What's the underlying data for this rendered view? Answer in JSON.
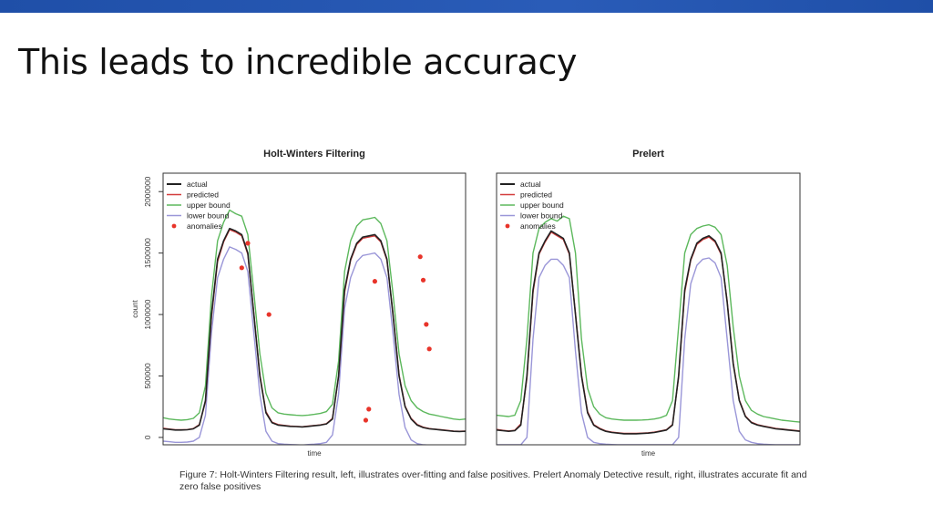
{
  "slide": {
    "title": "This leads to incredible accuracy",
    "caption": "Figure 7: Holt-Winters Filtering result, left, illustrates over-fitting and false positives.  Prelert Anomaly Detective result, right, illustrates accurate fit and zero false positives",
    "theme_color": "#2a5cb8"
  },
  "chart_data": [
    {
      "type": "line",
      "title": "Holt-Winters Filtering",
      "xlabel": "time",
      "ylabel": "count",
      "ylim": [
        -60000,
        2150000
      ],
      "yticks": [
        0,
        500000,
        1000000,
        1500000,
        2000000
      ],
      "ytick_labels": [
        "0",
        "500000",
        "1000000",
        "1500000",
        "2000000"
      ],
      "grid": false,
      "legend_position": "top-left",
      "legend": [
        "actual",
        "predicted",
        "upper bound",
        "lower bound",
        "anomalies"
      ],
      "colors": {
        "actual": "#222222",
        "predicted": "#d33c3c",
        "upper": "#5cb85c",
        "lower": "#9a96d8",
        "anomalies": "#e8342a"
      },
      "x": [
        0,
        0.02,
        0.04,
        0.06,
        0.08,
        0.1,
        0.12,
        0.14,
        0.16,
        0.18,
        0.2,
        0.22,
        0.24,
        0.26,
        0.28,
        0.3,
        0.32,
        0.34,
        0.36,
        0.38,
        0.4,
        0.42,
        0.44,
        0.46,
        0.48,
        0.5,
        0.52,
        0.54,
        0.56,
        0.58,
        0.6,
        0.62,
        0.64,
        0.66,
        0.68,
        0.7,
        0.72,
        0.74,
        0.76,
        0.78,
        0.8,
        0.82,
        0.84,
        0.86,
        0.88,
        0.9,
        0.92,
        0.94,
        0.96,
        0.98,
        1.0
      ],
      "series": [
        {
          "name": "actual",
          "values": [
            70000,
            65000,
            60000,
            60000,
            62000,
            70000,
            100000,
            300000,
            1000000,
            1450000,
            1600000,
            1700000,
            1680000,
            1650000,
            1500000,
            1000000,
            500000,
            200000,
            120000,
            100000,
            95000,
            90000,
            88000,
            85000,
            90000,
            95000,
            100000,
            110000,
            150000,
            500000,
            1200000,
            1450000,
            1580000,
            1630000,
            1640000,
            1650000,
            1600000,
            1450000,
            1000000,
            500000,
            250000,
            150000,
            100000,
            80000,
            70000,
            65000,
            60000,
            55000,
            50000,
            48000,
            50000
          ]
        },
        {
          "name": "predicted",
          "values": [
            75000,
            68000,
            63000,
            62000,
            64000,
            72000,
            105000,
            290000,
            980000,
            1430000,
            1590000,
            1690000,
            1670000,
            1640000,
            1490000,
            1010000,
            510000,
            210000,
            125000,
            105000,
            98000,
            92000,
            90000,
            87000,
            92000,
            97000,
            102000,
            112000,
            155000,
            490000,
            1180000,
            1440000,
            1570000,
            1620000,
            1630000,
            1640000,
            1590000,
            1440000,
            1010000,
            510000,
            255000,
            155000,
            105000,
            83000,
            72000,
            67000,
            62000,
            57000,
            52000,
            50000,
            52000
          ]
        },
        {
          "name": "upper bound",
          "values": [
            160000,
            150000,
            145000,
            140000,
            145000,
            155000,
            200000,
            420000,
            1150000,
            1600000,
            1750000,
            1850000,
            1820000,
            1800000,
            1650000,
            1180000,
            680000,
            360000,
            240000,
            200000,
            190000,
            185000,
            180000,
            178000,
            182000,
            188000,
            195000,
            210000,
            270000,
            620000,
            1350000,
            1600000,
            1720000,
            1770000,
            1780000,
            1790000,
            1740000,
            1600000,
            1170000,
            680000,
            420000,
            300000,
            240000,
            210000,
            190000,
            180000,
            170000,
            160000,
            150000,
            145000,
            150000
          ]
        },
        {
          "name": "lower bound",
          "values": [
            -30000,
            -35000,
            -40000,
            -40000,
            -38000,
            -30000,
            0,
            180000,
            850000,
            1300000,
            1450000,
            1550000,
            1530000,
            1500000,
            1350000,
            850000,
            350000,
            50000,
            -30000,
            -50000,
            -55000,
            -58000,
            -60000,
            -62000,
            -58000,
            -55000,
            -50000,
            -40000,
            20000,
            350000,
            1050000,
            1300000,
            1430000,
            1480000,
            1490000,
            1500000,
            1450000,
            1300000,
            850000,
            350000,
            80000,
            -20000,
            -50000,
            -60000,
            -62000,
            -64000,
            -65000,
            -66000,
            -66000,
            -65000,
            -64000
          ]
        }
      ],
      "anomalies": {
        "x": [
          0.26,
          0.28,
          0.35,
          0.67,
          0.68,
          0.7,
          0.85,
          0.86,
          0.87,
          0.88
        ],
        "values": [
          1380000,
          1580000,
          1000000,
          140000,
          230000,
          1270000,
          1470000,
          1280000,
          920000,
          720000
        ]
      }
    },
    {
      "type": "line",
      "title": "Prelert",
      "xlabel": "time",
      "ylabel": "",
      "ylim": [
        -60000,
        2150000
      ],
      "grid": false,
      "legend_position": "top-left",
      "legend": [
        "actual",
        "predicted",
        "upper bound",
        "lower bound",
        "anomalies"
      ],
      "colors": {
        "actual": "#222222",
        "predicted": "#d33c3c",
        "upper": "#5cb85c",
        "lower": "#9a96d8",
        "anomalies": "#e8342a"
      },
      "x": [
        0,
        0.02,
        0.04,
        0.06,
        0.08,
        0.1,
        0.12,
        0.14,
        0.16,
        0.18,
        0.2,
        0.22,
        0.24,
        0.26,
        0.28,
        0.3,
        0.32,
        0.34,
        0.36,
        0.38,
        0.4,
        0.42,
        0.44,
        0.46,
        0.48,
        0.5,
        0.52,
        0.54,
        0.56,
        0.58,
        0.6,
        0.62,
        0.64,
        0.66,
        0.68,
        0.7,
        0.72,
        0.74,
        0.76,
        0.78,
        0.8,
        0.82,
        0.84,
        0.86,
        0.88,
        0.9,
        0.92,
        0.94,
        0.96,
        0.98,
        1.0
      ],
      "series": [
        {
          "name": "actual",
          "values": [
            60000,
            55000,
            50000,
            55000,
            100000,
            500000,
            1200000,
            1500000,
            1600000,
            1680000,
            1650000,
            1620000,
            1500000,
            1000000,
            500000,
            200000,
            100000,
            70000,
            50000,
            40000,
            35000,
            30000,
            30000,
            30000,
            32000,
            35000,
            40000,
            50000,
            60000,
            100000,
            500000,
            1200000,
            1450000,
            1580000,
            1620000,
            1640000,
            1600000,
            1500000,
            1100000,
            600000,
            300000,
            170000,
            120000,
            100000,
            90000,
            80000,
            70000,
            65000,
            60000,
            55000,
            50000
          ]
        },
        {
          "name": "predicted",
          "values": [
            65000,
            58000,
            53000,
            58000,
            110000,
            480000,
            1180000,
            1490000,
            1590000,
            1670000,
            1640000,
            1610000,
            1490000,
            1010000,
            510000,
            210000,
            105000,
            74000,
            53000,
            43000,
            38000,
            33000,
            33000,
            33000,
            35000,
            38000,
            43000,
            53000,
            63000,
            105000,
            490000,
            1180000,
            1440000,
            1570000,
            1610000,
            1630000,
            1590000,
            1490000,
            1110000,
            610000,
            305000,
            175000,
            124000,
            104000,
            93000,
            83000,
            73000,
            68000,
            63000,
            58000,
            53000
          ]
        },
        {
          "name": "upper bound",
          "values": [
            180000,
            175000,
            170000,
            180000,
            300000,
            800000,
            1500000,
            1700000,
            1750000,
            1780000,
            1760000,
            1800000,
            1780000,
            1500000,
            800000,
            400000,
            250000,
            190000,
            160000,
            150000,
            145000,
            140000,
            140000,
            140000,
            142000,
            145000,
            150000,
            160000,
            180000,
            300000,
            900000,
            1500000,
            1650000,
            1700000,
            1720000,
            1730000,
            1710000,
            1650000,
            1400000,
            900000,
            500000,
            300000,
            220000,
            190000,
            170000,
            160000,
            150000,
            140000,
            135000,
            130000,
            125000
          ]
        },
        {
          "name": "lower bound",
          "values": [
            -60000,
            -60000,
            -60000,
            -60000,
            -60000,
            0,
            800000,
            1300000,
            1400000,
            1450000,
            1450000,
            1400000,
            1300000,
            700000,
            200000,
            0,
            -40000,
            -50000,
            -55000,
            -58000,
            -60000,
            -60000,
            -60000,
            -60000,
            -60000,
            -60000,
            -60000,
            -60000,
            -60000,
            -60000,
            0,
            800000,
            1250000,
            1400000,
            1450000,
            1460000,
            1420000,
            1300000,
            800000,
            300000,
            50000,
            -20000,
            -40000,
            -50000,
            -55000,
            -58000,
            -60000,
            -60000,
            -60000,
            -60000,
            -60000
          ]
        }
      ],
      "anomalies": {
        "x": [],
        "values": []
      }
    }
  ]
}
